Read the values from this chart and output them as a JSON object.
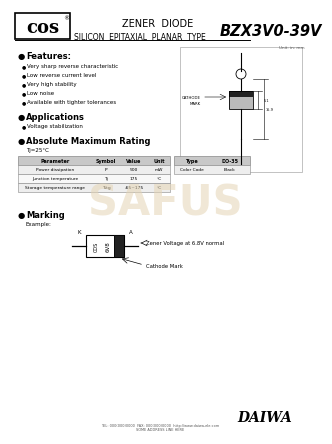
{
  "bg_color": "#ffffff",
  "title_zener": "ZENER  DIODE",
  "title_silicon": "SILICON  EPITAXIAL  PLANAR  TYPE",
  "part_number": "BZX3V0-39V",
  "features_title": "Features:",
  "features": [
    "Very sharp reverse characteristic",
    "Low reverse current level",
    "Very high stability",
    "Low noise",
    "Available with tighter tolerances"
  ],
  "applications_title": "Applications",
  "applications": [
    "Voltage stabilization"
  ],
  "abs_max_title": "Absolute Maximum Rating",
  "tj_note": "Tj=25°C",
  "table_headers": [
    "Parameter",
    "Symbol",
    "Value",
    "Unit"
  ],
  "table_rows": [
    [
      "Power dissipation",
      "P",
      "500",
      "mW"
    ],
    [
      "Junction temperature",
      "Tj",
      "175",
      "°C"
    ],
    [
      "Storage temperature range",
      "Tstg",
      "-65~175",
      "°C"
    ]
  ],
  "pkg_headers": [
    "Type",
    "DO-35"
  ],
  "pkg_rows": [
    [
      "Color Code",
      "Black"
    ]
  ],
  "marking_title": "Marking",
  "marking_example": "Example:",
  "marking_label1": "Zener Voltage at 6.8V normal",
  "marking_label2": "Cathode Mark",
  "unit_note": "Unit: in: mm",
  "daiwa_text": "DAIWA",
  "safus_text": "SAFUS"
}
